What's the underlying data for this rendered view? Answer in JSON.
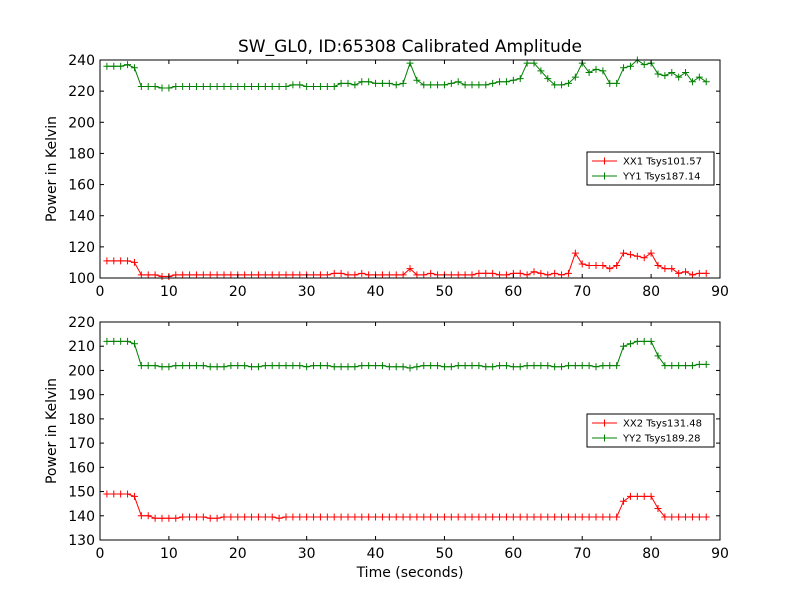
{
  "chart_data": [
    {
      "type": "line",
      "title": "SW_GL0, ID:65308 Calibrated Amplitude",
      "xlabel": "",
      "ylabel": "Power in Kelvin",
      "xlim": [
        0,
        90
      ],
      "ylim": [
        100,
        240
      ],
      "xticks": [
        0,
        10,
        20,
        30,
        40,
        50,
        60,
        70,
        80,
        90
      ],
      "yticks": [
        100,
        120,
        140,
        160,
        180,
        200,
        220,
        240
      ],
      "legend_position": "center-right",
      "x": [
        1,
        2,
        3,
        4,
        5,
        6,
        7,
        8,
        9,
        10,
        11,
        12,
        13,
        14,
        15,
        16,
        17,
        18,
        19,
        20,
        21,
        22,
        23,
        24,
        25,
        26,
        27,
        28,
        29,
        30,
        31,
        32,
        33,
        34,
        35,
        36,
        37,
        38,
        39,
        40,
        41,
        42,
        43,
        44,
        45,
        46,
        47,
        48,
        49,
        50,
        51,
        52,
        53,
        54,
        55,
        56,
        57,
        58,
        59,
        60,
        61,
        62,
        63,
        64,
        65,
        66,
        67,
        68,
        69,
        70,
        71,
        72,
        73,
        74,
        75,
        76,
        77,
        78,
        79,
        80,
        81,
        82,
        83,
        84,
        85,
        86,
        87,
        88
      ],
      "series": [
        {
          "name": "XX1 Tsys101.57",
          "color": "#ff0000",
          "values": [
            111,
            111,
            111,
            111,
            110,
            102,
            102,
            102,
            101,
            101,
            102,
            102,
            102,
            102,
            102,
            102,
            102,
            102,
            102,
            102,
            102,
            102,
            102,
            102,
            102,
            102,
            102,
            102,
            102,
            102,
            102,
            102,
            102,
            103,
            103,
            102,
            102,
            103,
            102,
            102,
            102,
            102,
            102,
            102,
            106,
            102,
            102,
            103,
            102,
            102,
            102,
            102,
            102,
            102,
            103,
            103,
            103,
            102,
            102,
            103,
            103,
            102,
            104,
            103,
            102,
            103,
            102,
            103,
            116,
            109,
            108,
            108,
            108,
            106,
            108,
            116,
            115,
            114,
            113,
            116,
            108,
            106,
            106,
            103,
            104,
            102,
            103,
            103
          ]
        },
        {
          "name": "YY1 Tsys187.14",
          "color": "#008000",
          "values": [
            236,
            236,
            236,
            237,
            235,
            223,
            223,
            223,
            222,
            222,
            223,
            223,
            223,
            223,
            223,
            223,
            223,
            223,
            223,
            223,
            223,
            223,
            223,
            223,
            223,
            223,
            223,
            224,
            224,
            223,
            223,
            223,
            223,
            223,
            225,
            225,
            224,
            226,
            226,
            225,
            225,
            225,
            224,
            225,
            238,
            227,
            224,
            224,
            224,
            224,
            225,
            226,
            224,
            224,
            224,
            224,
            225,
            226,
            226,
            227,
            228,
            238,
            238,
            233,
            228,
            224,
            224,
            225,
            229,
            238,
            232,
            234,
            233,
            225,
            225,
            235,
            236,
            240,
            237,
            238,
            231,
            230,
            232,
            229,
            232,
            226,
            229,
            226
          ]
        }
      ]
    },
    {
      "type": "line",
      "title": "",
      "xlabel": "Time (seconds)",
      "ylabel": "Power in Kelvin",
      "xlim": [
        0,
        90
      ],
      "ylim": [
        130,
        220
      ],
      "xticks": [
        0,
        10,
        20,
        30,
        40,
        50,
        60,
        70,
        80,
        90
      ],
      "yticks": [
        130,
        140,
        150,
        160,
        170,
        180,
        190,
        200,
        210,
        220
      ],
      "legend_position": "center-right",
      "x": [
        1,
        2,
        3,
        4,
        5,
        6,
        7,
        8,
        9,
        10,
        11,
        12,
        13,
        14,
        15,
        16,
        17,
        18,
        19,
        20,
        21,
        22,
        23,
        24,
        25,
        26,
        27,
        28,
        29,
        30,
        31,
        32,
        33,
        34,
        35,
        36,
        37,
        38,
        39,
        40,
        41,
        42,
        43,
        44,
        45,
        46,
        47,
        48,
        49,
        50,
        51,
        52,
        53,
        54,
        55,
        56,
        57,
        58,
        59,
        60,
        61,
        62,
        63,
        64,
        65,
        66,
        67,
        68,
        69,
        70,
        71,
        72,
        73,
        74,
        75,
        76,
        77,
        78,
        79,
        80,
        81,
        82,
        83,
        84,
        85,
        86,
        87,
        88
      ],
      "series": [
        {
          "name": "XX2 Tsys131.48",
          "color": "#ff0000",
          "values": [
            149,
            149,
            149,
            149,
            148,
            140,
            140,
            139,
            139,
            139,
            139,
            139.5,
            139.5,
            139.5,
            139.5,
            139,
            139,
            139.5,
            139.5,
            139.5,
            139.5,
            139.5,
            139.5,
            139.5,
            139.5,
            139,
            139.5,
            139.5,
            139.5,
            139.5,
            139.5,
            139.5,
            139.5,
            139.5,
            139.5,
            139.5,
            139.5,
            139.5,
            139.5,
            139.5,
            139.5,
            139.5,
            139.5,
            139.5,
            139.5,
            139.5,
            139.5,
            139.5,
            139.5,
            139.5,
            139.5,
            139.5,
            139.5,
            139.5,
            139.5,
            139.5,
            139.5,
            139.5,
            139.5,
            139.5,
            139.5,
            139.5,
            139.5,
            139.5,
            139.5,
            139.5,
            139.5,
            139.5,
            139.5,
            139.5,
            139.5,
            139.5,
            139.5,
            139.5,
            139.5,
            146,
            148,
            148,
            148,
            148,
            143,
            139.5,
            139.5,
            139.5,
            139.5,
            139.5,
            139.5,
            139.5
          ]
        },
        {
          "name": "YY2 Tsys189.28",
          "color": "#008000",
          "values": [
            212,
            212,
            212,
            212,
            211,
            202,
            202,
            202,
            201.5,
            201.5,
            202,
            202,
            202,
            202,
            202,
            201.5,
            201.5,
            201.5,
            202,
            202,
            202,
            201.5,
            201.5,
            202,
            202,
            202,
            202,
            202,
            202,
            201.5,
            202,
            202,
            202,
            201.5,
            201.5,
            201.5,
            201.5,
            202,
            202,
            202,
            202,
            201.5,
            201.5,
            201.5,
            201,
            201.5,
            202,
            202,
            202,
            201.5,
            201.5,
            202,
            202,
            202,
            202,
            201.5,
            201.5,
            202,
            202,
            201.5,
            201.5,
            202,
            202,
            202,
            202,
            201.5,
            201.5,
            202,
            202,
            202,
            202,
            201.5,
            202,
            202,
            202,
            210,
            211,
            212,
            212,
            212,
            206,
            202,
            202,
            202,
            202,
            202,
            202.5,
            202.5
          ]
        }
      ]
    }
  ]
}
